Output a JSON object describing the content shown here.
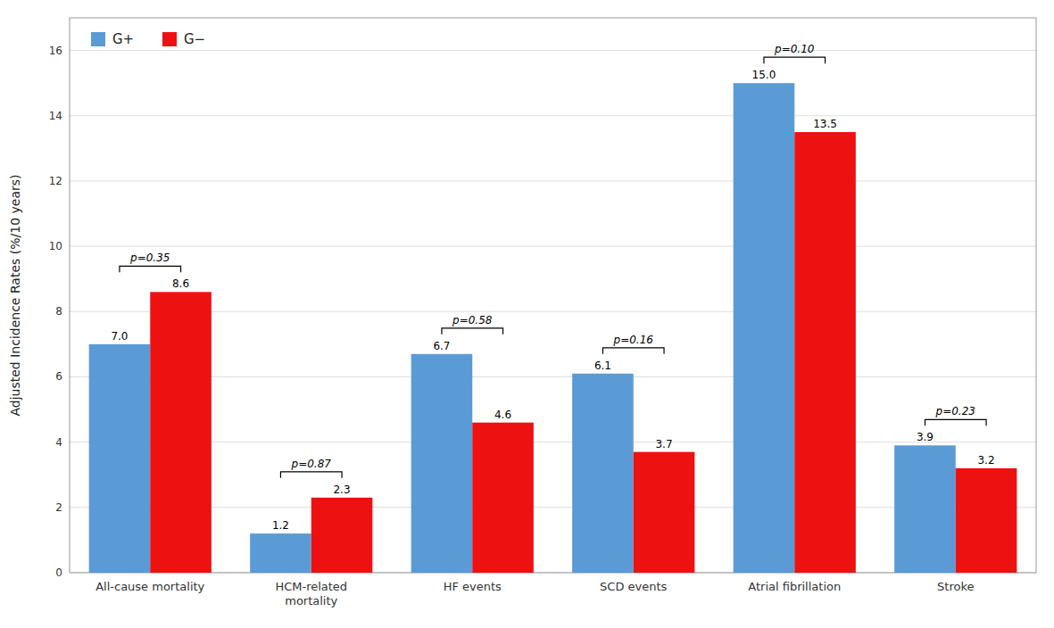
{
  "chart_data": {
    "type": "bar",
    "ylabel": "Adjusted Incidence Rates (%/10 years)",
    "categories": [
      "All-cause mortality",
      "HCM-related\nmortality",
      "HF events",
      "SCD events",
      "Atrial fibrillation",
      "Stroke"
    ],
    "series": [
      {
        "name": "G+",
        "color": "#5B9BD5",
        "values": [
          7.0,
          1.2,
          6.7,
          6.1,
          15.0,
          3.9
        ],
        "value_labels": [
          "7.0",
          "1.2",
          "6.7",
          "6.1",
          "15.0",
          "3.9"
        ]
      },
      {
        "name": "G−",
        "color": "#EE1111",
        "values": [
          8.6,
          2.3,
          4.6,
          3.7,
          13.5,
          3.2
        ],
        "value_labels": [
          "8.6",
          "2.3",
          "4.6",
          "3.7",
          "13.5",
          "3.2"
        ]
      }
    ],
    "annotations": [
      "p=0.35",
      "p=0.87",
      "p=0.58",
      "p=0.16",
      "p=0.10",
      "p=0.23"
    ],
    "ylim": [
      0,
      17
    ],
    "yticks": [
      0,
      2,
      4,
      6,
      8,
      10,
      12,
      14,
      16
    ],
    "grid": true,
    "legend": "upper left",
    "data_labels": true
  }
}
